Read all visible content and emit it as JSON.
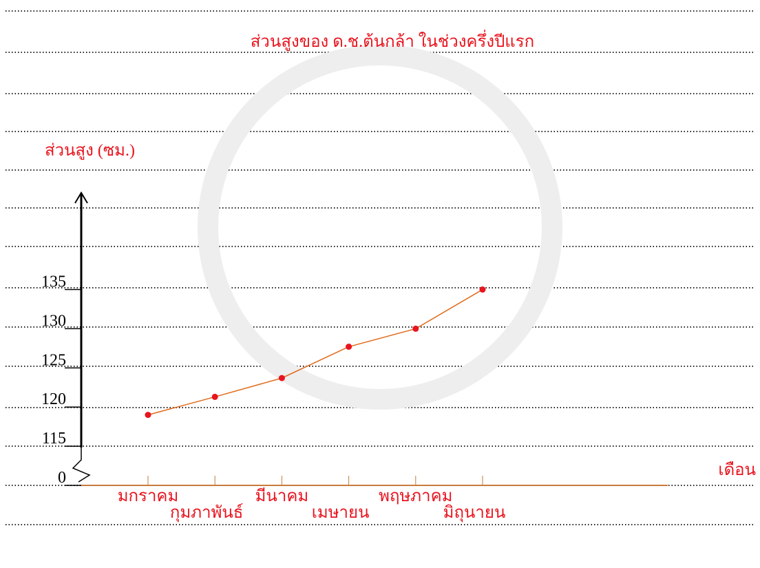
{
  "chart_data": {
    "type": "line",
    "title": "ส่วนสูงของ ด.ช.ต้นกล้า ในช่วงครึ่งปีแรก",
    "y_label": "ส่วนสูง (ซม.)",
    "x_label": "เดือน",
    "categories": [
      "มกราคม",
      "กุมภาพันธ์",
      "มีนาคม",
      "เมษายน",
      "พฤษภาคม",
      "มิถุนายน"
    ],
    "series": [
      {
        "color": "#e06a1a",
        "marker_color": "#e8141e",
        "values": [
          119,
          121.3,
          123.7,
          127.7,
          130,
          135
        ]
      }
    ],
    "ylim": [
      110,
      147
    ],
    "yticks": [
      {
        "value": 110,
        "label": "0"
      },
      115,
      120,
      125,
      130,
      135
    ],
    "axis_break": true,
    "text_color": "#e8141e"
  }
}
